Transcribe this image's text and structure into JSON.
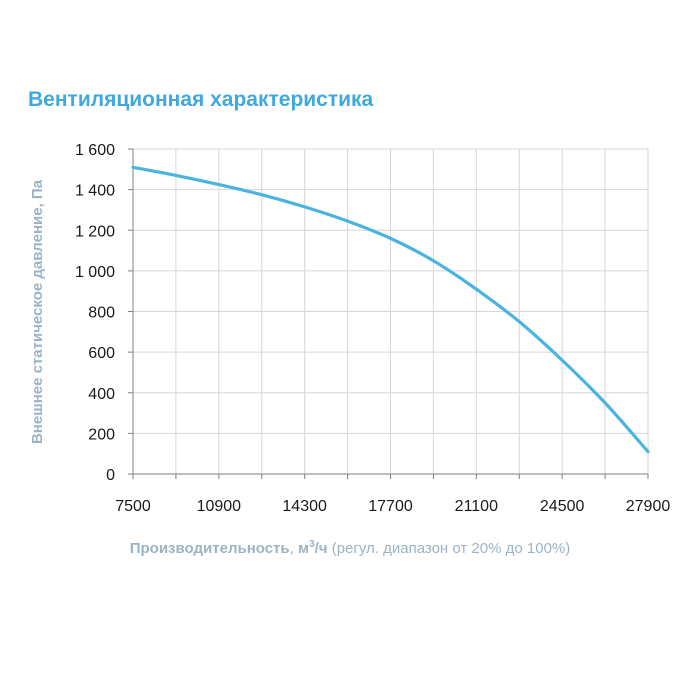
{
  "chart_data": {
    "type": "line",
    "title": "Вентиляционная характеристика",
    "ylabel": "Внешнее статическое давление, Па",
    "xlabel": {
      "bold": "Производительность",
      "sep": ", ",
      "unit_m": "м",
      "unit_sup": "3",
      "unit_rest": "/ч",
      "note": " (регул. диапазон от 20% до 100%)"
    },
    "xlim": [
      7500,
      27900
    ],
    "ylim": [
      0,
      1600
    ],
    "x_ticks": [
      7500,
      10900,
      14300,
      17700,
      21100,
      24500,
      27900
    ],
    "x_tick_labels": [
      "7500",
      "10900",
      "14300",
      "17700",
      "21100",
      "24500",
      "27900"
    ],
    "y_ticks": [
      0,
      200,
      400,
      600,
      800,
      1000,
      1200,
      1400,
      1600
    ],
    "y_tick_labels": [
      "0",
      "200",
      "400",
      "600",
      "800",
      "1 000",
      "1 200",
      "1 400",
      "1 600"
    ],
    "grid": true,
    "series": [
      {
        "name": "Вентиляционная характеристика",
        "color": "#4ab4e0",
        "x": [
          7500,
          9200,
          10900,
          12600,
          14300,
          16000,
          17700,
          19400,
          21100,
          22800,
          24500,
          26200,
          27900
        ],
        "y": [
          1510,
          1470,
          1425,
          1375,
          1315,
          1245,
          1160,
          1050,
          910,
          750,
          560,
          350,
          110
        ]
      }
    ]
  }
}
